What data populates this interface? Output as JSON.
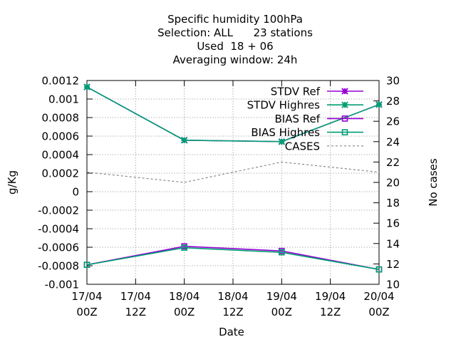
{
  "chart_data": {
    "type": "line",
    "title_lines": [
      "Specific humidity 100hPa",
      "Selection: ALL      23 stations",
      "Used  18 + 06",
      "Averaging window: 24h"
    ],
    "xlabel": "Date",
    "ylabel": "g/Kg",
    "y2label": "No cases",
    "x_categories": [
      [
        "17/04",
        "00Z"
      ],
      [
        "17/04",
        "12Z"
      ],
      [
        "18/04",
        "00Z"
      ],
      [
        "18/04",
        "12Z"
      ],
      [
        "19/04",
        "00Z"
      ],
      [
        "19/04",
        "12Z"
      ],
      [
        "20/04",
        "00Z"
      ]
    ],
    "ylim": [
      -0.001,
      0.0012
    ],
    "yticks": [
      "0.0012",
      "0.001",
      "0.0008",
      "0.0006",
      "0.0004",
      "0.0002",
      "0",
      "-0.0002",
      "-0.0004",
      "-0.0006",
      "-0.0008",
      "-0.001"
    ],
    "y2lim": [
      10,
      30
    ],
    "y2ticks": [
      "30",
      "28",
      "26",
      "24",
      "22",
      "20",
      "18",
      "16",
      "14",
      "12",
      "10"
    ],
    "grid": true,
    "legend_position": "top-right",
    "series": [
      {
        "name": "STDV Ref",
        "axis": "y",
        "color": "#9400d3",
        "marker": "x",
        "dashed": false,
        "points": [
          [
            0,
            0.00113
          ],
          [
            2,
            0.000555
          ],
          [
            4,
            0.00054
          ],
          [
            6,
            0.00094
          ]
        ]
      },
      {
        "name": "STDV Highres",
        "axis": "y",
        "color": "#009e73",
        "marker": "x",
        "dashed": false,
        "points": [
          [
            0,
            0.00113
          ],
          [
            2,
            0.000555
          ],
          [
            4,
            0.00054
          ],
          [
            6,
            0.00094
          ]
        ]
      },
      {
        "name": "BIAS Ref",
        "axis": "y",
        "color": "#9400d3",
        "marker": "square",
        "dashed": false,
        "points": [
          [
            0,
            -0.00079
          ],
          [
            2,
            -0.00059
          ],
          [
            4,
            -0.00064
          ],
          [
            6,
            -0.00084
          ]
        ]
      },
      {
        "name": "BIAS Highres",
        "axis": "y",
        "color": "#009e73",
        "marker": "square",
        "dashed": false,
        "points": [
          [
            0,
            -0.00079
          ],
          [
            2,
            -0.000605
          ],
          [
            4,
            -0.000655
          ],
          [
            6,
            -0.00084
          ]
        ]
      },
      {
        "name": "CASES",
        "axis": "y2",
        "color": "#888888",
        "marker": "none",
        "dashed": true,
        "points": [
          [
            0,
            21
          ],
          [
            2,
            20
          ],
          [
            4,
            22
          ],
          [
            6,
            21
          ]
        ]
      }
    ]
  }
}
